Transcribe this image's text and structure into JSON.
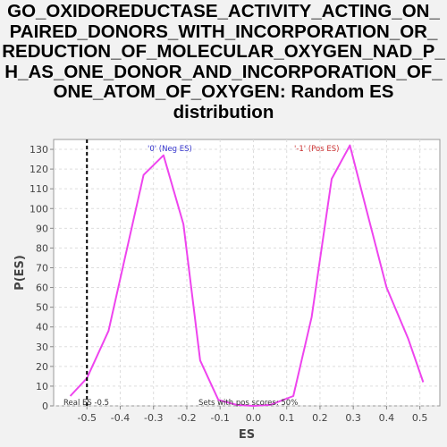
{
  "chart_data": {
    "type": "line",
    "title_lines": [
      "GO_OXIDOREDUCTASE_ACTIVITY_ACTING_ON_",
      "PAIRED_DONORS_WITH_INCORPORATION_OR_",
      "REDUCTION_OF_MOLECULAR_OXYGEN_NAD_P_",
      "H_AS_ONE_DONOR_AND_INCORPORATION_OF_",
      "ONE_ATOM_OF_OXYGEN: Random ES",
      "distribution"
    ],
    "xlabel": "ES",
    "ylabel": "P(ES)",
    "xlim": [
      -0.6,
      0.56
    ],
    "ylim": [
      0,
      135
    ],
    "xticks": [
      -0.5,
      -0.4,
      -0.3,
      -0.2,
      -0.1,
      0.0,
      0.1,
      0.2,
      0.3,
      0.4,
      0.5
    ],
    "xtick_labels": [
      "-0.5",
      "-0.4",
      "-0.3",
      "-0.2",
      "-0.1",
      "0.0",
      "0.1",
      "0.2",
      "0.3",
      "0.4",
      "0.5"
    ],
    "yticks": [
      0,
      10,
      20,
      30,
      40,
      50,
      60,
      70,
      80,
      90,
      100,
      110,
      120,
      130
    ],
    "ytick_labels": [
      "0",
      "10",
      "20",
      "30",
      "40",
      "50",
      "60",
      "70",
      "80",
      "90",
      "100",
      "110",
      "120",
      "130"
    ],
    "grid": true,
    "series": [
      {
        "color": "#ee44ee",
        "x": [
          -0.55,
          -0.5,
          -0.435,
          -0.33,
          -0.27,
          -0.21,
          -0.16,
          -0.105,
          -0.05,
          0.0,
          0.05,
          0.12,
          0.175,
          0.235,
          0.29,
          0.34,
          0.4,
          0.465,
          0.51
        ],
        "y": [
          5,
          14,
          38,
          117,
          127,
          92,
          23,
          3,
          0.5,
          0,
          0.5,
          5,
          45,
          115,
          132,
          99,
          60,
          34,
          12
        ]
      }
    ],
    "real_es": {
      "value": -0.5,
      "label": "Real ES -0.5",
      "color": "#000000"
    },
    "annotations": {
      "neg_label": "'0' (Neg ES)",
      "neg_color": "#3333cc",
      "pos_label": "'-1' (Pos ES)",
      "pos_color": "#cc3333",
      "sets_label": "Sets with pos scores: 50%",
      "sets_color": "#333333"
    }
  }
}
